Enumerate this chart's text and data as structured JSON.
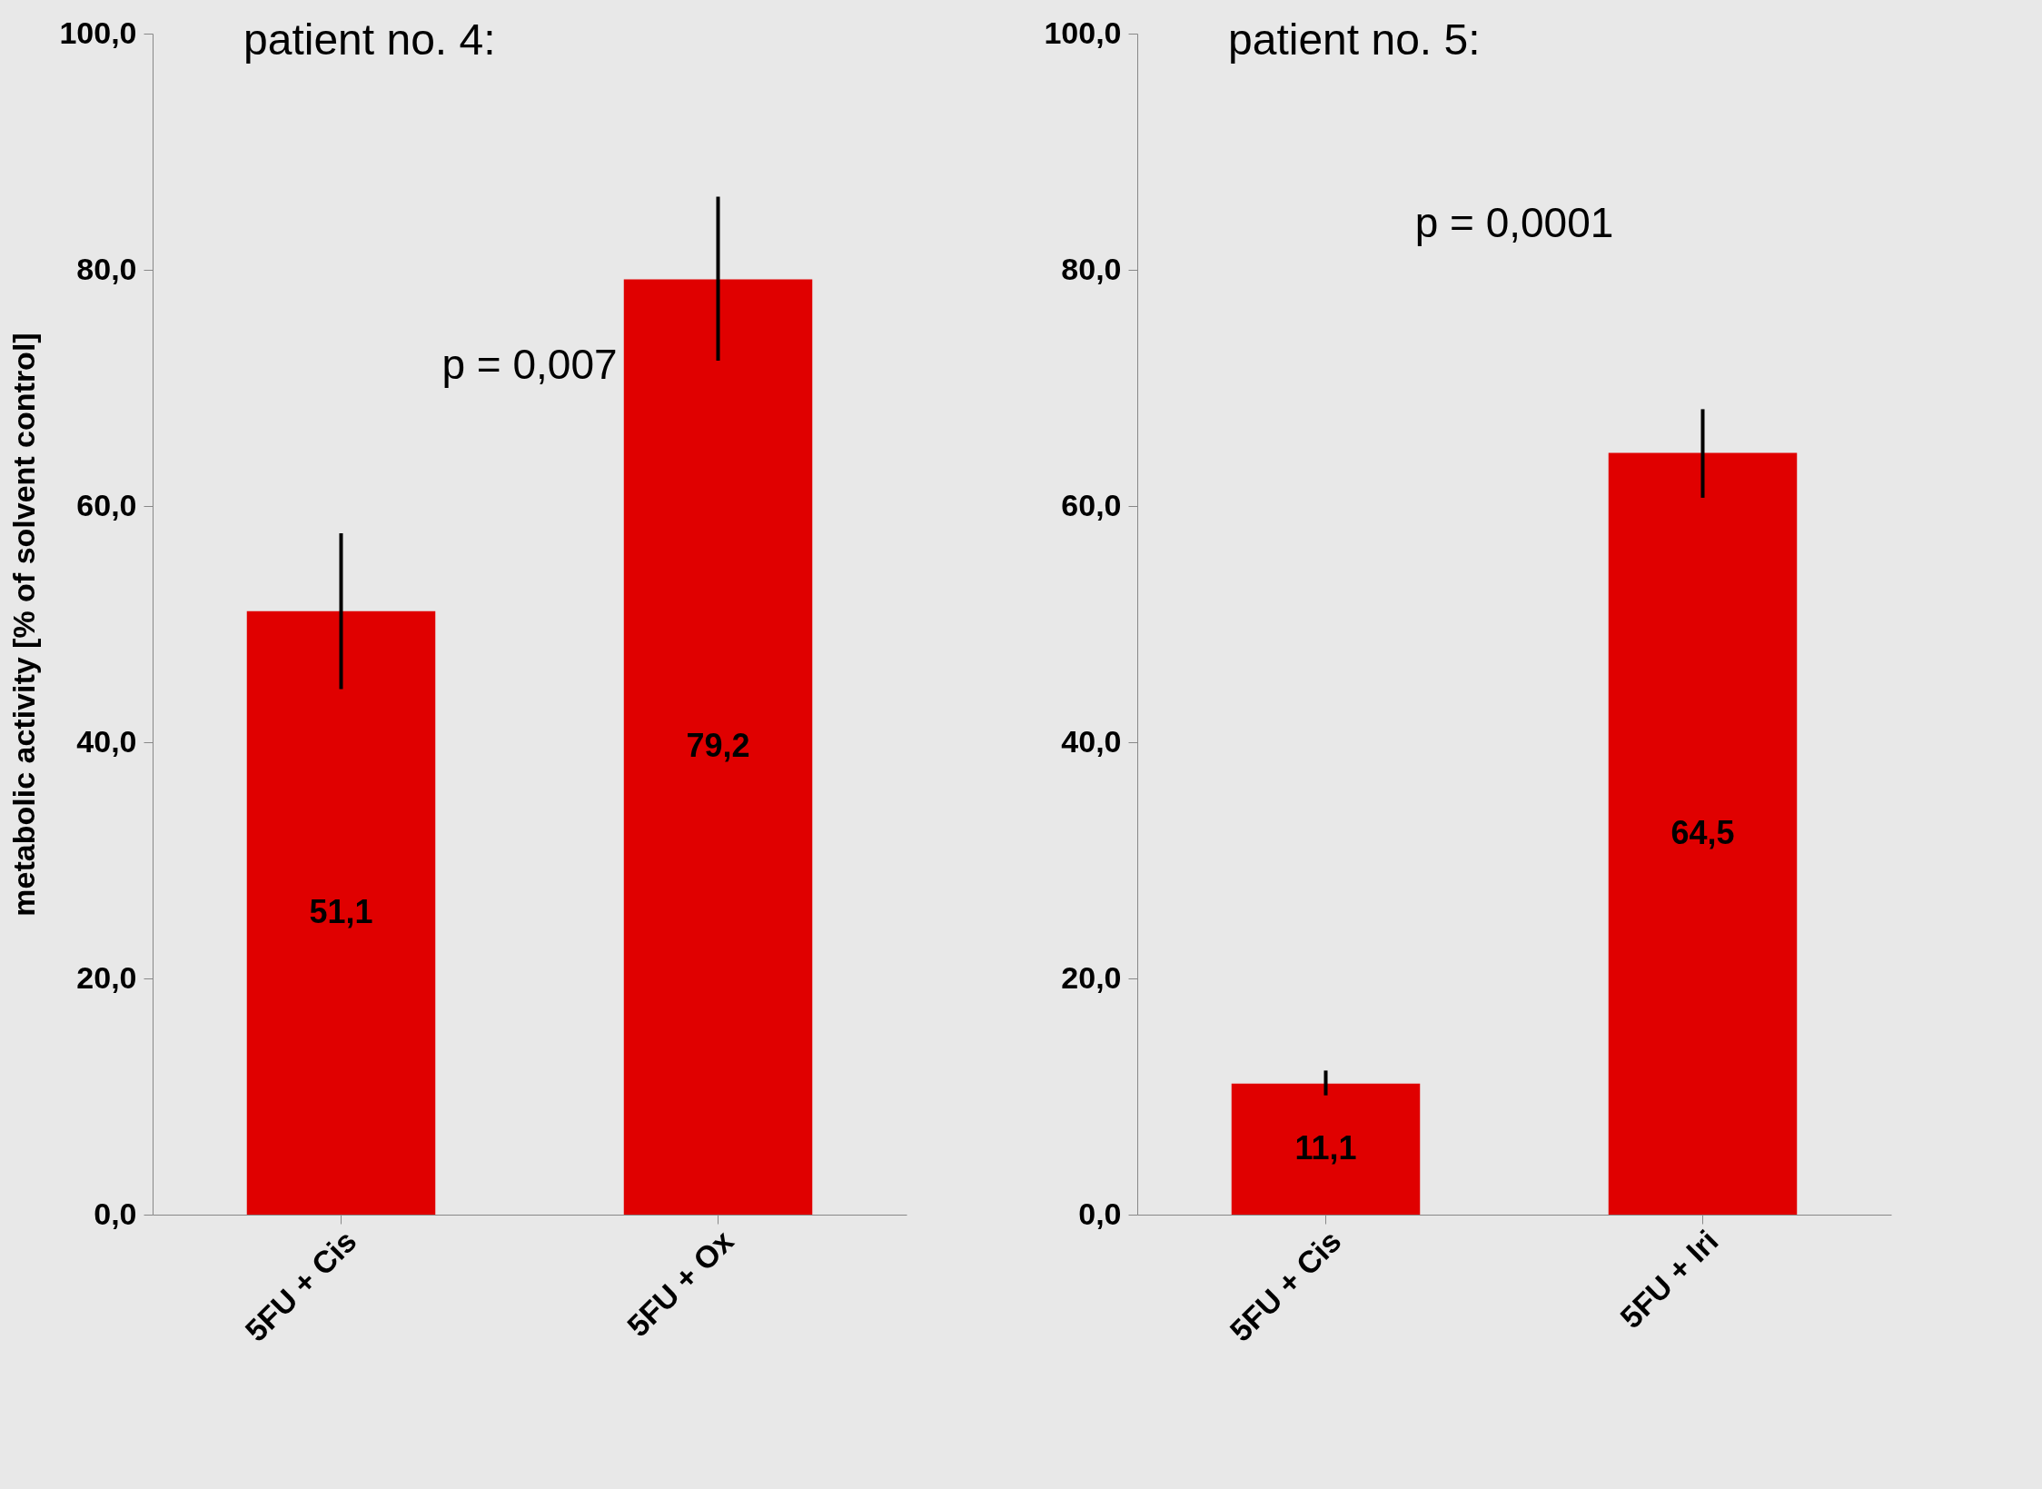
{
  "chart_data": [
    {
      "type": "bar",
      "title": "patient no. 4:",
      "ylabel": "metabolic activity [% of solvent control]",
      "categories": [
        "5FU + Cis",
        "5FU + Ox"
      ],
      "values": [
        51.1,
        79.2
      ],
      "value_labels": [
        "51,1",
        "79,2"
      ],
      "errors": [
        [
          44.5,
          57.7
        ],
        [
          72.3,
          86.2
        ]
      ],
      "color": "#e00000",
      "ylim": [
        0,
        100
      ],
      "yticks": [
        {
          "value": 0,
          "label": "0,0"
        },
        {
          "value": 20,
          "label": "20,0"
        },
        {
          "value": 40,
          "label": "40,0"
        },
        {
          "value": 60,
          "label": "60,0"
        },
        {
          "value": 80,
          "label": "80,0"
        },
        {
          "value": 100,
          "label": "100,0"
        }
      ],
      "annotations": [
        "p = 0,007"
      ],
      "grid": false
    },
    {
      "type": "bar",
      "title": "patient no. 5:",
      "categories": [
        "5FU + Cis",
        "5FU + Iri"
      ],
      "values": [
        11.1,
        64.5
      ],
      "value_labels": [
        "11,1",
        "64,5"
      ],
      "errors": [
        [
          10.1,
          12.2
        ],
        [
          60.7,
          68.2
        ]
      ],
      "color": "#e00000",
      "ylim": [
        0,
        100
      ],
      "yticks": [
        {
          "value": 0,
          "label": "0,0"
        },
        {
          "value": 20,
          "label": "20,0"
        },
        {
          "value": 40,
          "label": "40,0"
        },
        {
          "value": 60,
          "label": "60,0"
        },
        {
          "value": 80,
          "label": "80,0"
        },
        {
          "value": 100,
          "label": "100,0"
        }
      ],
      "annotations": [
        "p = 0,0001"
      ],
      "grid": false
    }
  ]
}
